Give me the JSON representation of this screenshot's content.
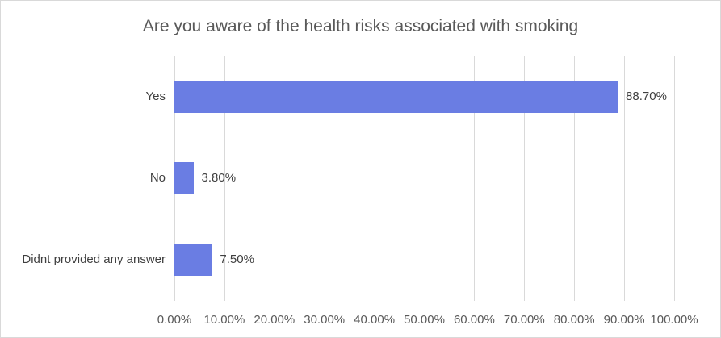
{
  "chart_data": {
    "type": "bar",
    "orientation": "horizontal",
    "title": "Are you aware of the health risks associated with smoking",
    "categories": [
      "Yes",
      "No",
      "Didnt provided any answer"
    ],
    "values": [
      88.7,
      3.8,
      7.5
    ],
    "value_labels": [
      "88.70%",
      "3.80%",
      "7.50%"
    ],
    "xlabel": "",
    "ylabel": "",
    "xlim": [
      0,
      100
    ],
    "x_ticks": [
      0,
      10,
      20,
      30,
      40,
      50,
      60,
      70,
      80,
      90,
      100
    ],
    "x_tick_labels": [
      "0.00%",
      "10.00%",
      "20.00%",
      "30.00%",
      "40.00%",
      "50.00%",
      "60.00%",
      "70.00%",
      "80.00%",
      "90.00%",
      "100.00%"
    ],
    "grid": true,
    "legend_position": "none",
    "colors": {
      "bar": "#6A7DE3",
      "gridline": "#D9D9D9",
      "chart_border": "#D9D9D9",
      "title_text": "#595959",
      "axis_text": "#595959",
      "label_text": "#404040"
    }
  }
}
